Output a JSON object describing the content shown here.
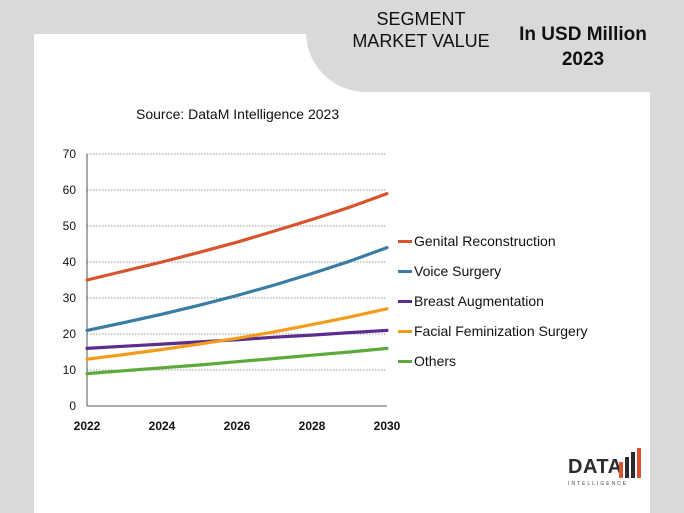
{
  "header": {
    "segment_title": "SEGMENT MARKET VALUE",
    "unit_title": "In USD Million 2023"
  },
  "logo": {
    "text": "DATA",
    "subtitle": "INTELLIGENCE"
  },
  "colors": {
    "background": "#d9d9d9",
    "panel": "#ffffff",
    "genital": "#d9542c",
    "voice": "#3a7ca5",
    "breast": "#5b2d8e",
    "facial": "#f39c1b",
    "others": "#5aaa3c"
  },
  "chart_data": {
    "type": "line",
    "title": "Source: DataM Intelligence 2023",
    "xlabel": "",
    "ylabel": "",
    "x": [
      2022,
      2023,
      2024,
      2025,
      2026,
      2027,
      2028,
      2029,
      2030
    ],
    "x_ticks": [
      "2022",
      "2024",
      "2026",
      "2028",
      "2030"
    ],
    "y_ticks": [
      "0",
      "10",
      "20",
      "30",
      "40",
      "50",
      "60",
      "70"
    ],
    "ylim": [
      0,
      70
    ],
    "grid": true,
    "legend_position": "right",
    "series": [
      {
        "name": "Genital Reconstruction",
        "color": "#d9542c",
        "values": [
          35,
          37.5,
          40,
          42.7,
          45.5,
          48.6,
          51.8,
          55.2,
          59
        ]
      },
      {
        "name": "Voice Surgery",
        "color": "#3a7ca5",
        "values": [
          21,
          23.2,
          25.5,
          28,
          30.7,
          33.6,
          36.8,
          40.2,
          44
        ]
      },
      {
        "name": "Breast Augmentation",
        "color": "#5b2d8e",
        "values": [
          16,
          16.6,
          17.2,
          17.8,
          18.4,
          19.1,
          19.7,
          20.4,
          21
        ]
      },
      {
        "name": "Facial Feminization Surgery",
        "color": "#f39c1b",
        "values": [
          13,
          14.3,
          15.7,
          17.2,
          18.8,
          20.6,
          22.6,
          24.7,
          27
        ]
      },
      {
        "name": "Others",
        "color": "#5aaa3c",
        "values": [
          9,
          9.8,
          10.6,
          11.4,
          12.3,
          13.2,
          14.1,
          15,
          16
        ]
      }
    ]
  }
}
